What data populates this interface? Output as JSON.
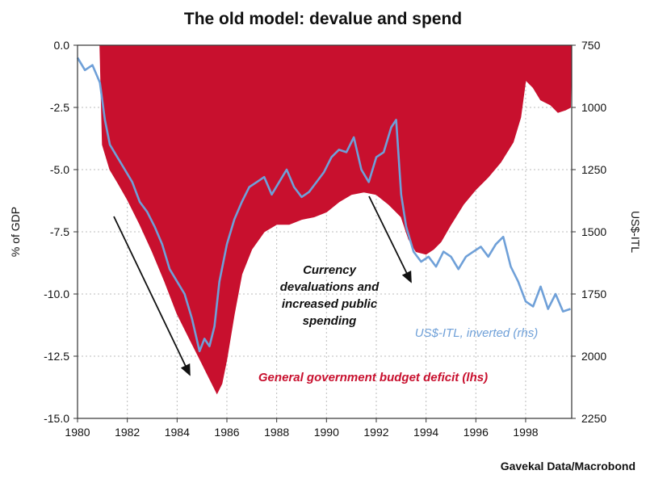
{
  "chart_data": {
    "type": "area",
    "title": "The old model: devalue and spend",
    "ylabel_left": "% of GDP",
    "ylabel_right": "US$-ITL",
    "source": "Gavekal Data/Macrobond",
    "xlim": [
      1980,
      1999.85
    ],
    "ylim_left": [
      -15.0,
      0.0
    ],
    "ylim_right": [
      750,
      2250
    ],
    "right_inverted": true,
    "grid": true,
    "x_ticks": [
      1980,
      1982,
      1984,
      1986,
      1988,
      1990,
      1992,
      1994,
      1996,
      1998
    ],
    "x_tick_labels": [
      "1980",
      "1982",
      "1984",
      "1986",
      "1988",
      "1990",
      "1992",
      "1994",
      "1996",
      "1998"
    ],
    "y_left_ticks": [
      0.0,
      -2.5,
      -5.0,
      -7.5,
      -10.0,
      -12.5,
      -15.0
    ],
    "y_left_tick_labels": [
      "0.0",
      "-2.5",
      "-5.0",
      "-7.5",
      "-10.0",
      "-12.5",
      "-15.0"
    ],
    "y_right_ticks": [
      750,
      1000,
      1250,
      1500,
      1750,
      2000,
      2250
    ],
    "y_right_tick_labels": [
      "750",
      "1000",
      "1250",
      "1500",
      "1750",
      "2000",
      "2250"
    ],
    "series": [
      {
        "name": "General government budget deficit (lhs)",
        "axis": "left",
        "color": "#c8102e",
        "kind": "area",
        "x": [
          1980.9,
          1981.0,
          1981.3,
          1981.6,
          1982.0,
          1982.5,
          1983.0,
          1983.5,
          1984.0,
          1984.5,
          1985.0,
          1985.3,
          1985.6,
          1985.8,
          1986.0,
          1986.3,
          1986.6,
          1987.0,
          1987.5,
          1988.0,
          1988.5,
          1989.0,
          1989.5,
          1990.0,
          1990.5,
          1991.0,
          1991.5,
          1992.0,
          1992.5,
          1993.0,
          1993.3,
          1993.6,
          1994.0,
          1994.3,
          1994.6,
          1995.0,
          1995.5,
          1996.0,
          1996.5,
          1997.0,
          1997.5,
          1997.8,
          1998.0,
          1998.3,
          1998.6,
          1999.0,
          1999.3,
          1999.6,
          1999.8,
          1999.85
        ],
        "values": [
          0.0,
          -4.0,
          -5.0,
          -5.5,
          -6.2,
          -7.2,
          -8.3,
          -9.5,
          -10.8,
          -11.8,
          -12.8,
          -13.4,
          -14.0,
          -13.6,
          -12.6,
          -10.8,
          -9.2,
          -8.2,
          -7.5,
          -7.2,
          -7.2,
          -7.0,
          -6.9,
          -6.7,
          -6.3,
          -6.0,
          -5.9,
          -6.0,
          -6.4,
          -6.9,
          -7.8,
          -8.3,
          -8.4,
          -8.2,
          -7.9,
          -7.2,
          -6.4,
          -5.8,
          -5.3,
          -4.7,
          -3.9,
          -2.9,
          -1.4,
          -1.7,
          -2.2,
          -2.4,
          -2.7,
          -2.6,
          -2.5,
          0.0
        ]
      },
      {
        "name": "US$-ITL, inverted (rhs)",
        "axis": "right",
        "color": "#6fa0d8",
        "kind": "line",
        "x": [
          1980.0,
          1980.3,
          1980.6,
          1980.9,
          1981.1,
          1981.3,
          1981.6,
          1981.9,
          1982.2,
          1982.5,
          1982.8,
          1983.1,
          1983.4,
          1983.7,
          1984.0,
          1984.3,
          1984.6,
          1984.9,
          1985.1,
          1985.3,
          1985.5,
          1985.7,
          1986.0,
          1986.3,
          1986.6,
          1986.9,
          1987.2,
          1987.5,
          1987.8,
          1988.1,
          1988.4,
          1988.7,
          1989.0,
          1989.3,
          1989.6,
          1989.9,
          1990.2,
          1990.5,
          1990.8,
          1991.1,
          1991.4,
          1991.7,
          1992.0,
          1992.3,
          1992.6,
          1992.8,
          1993.0,
          1993.2,
          1993.5,
          1993.8,
          1994.1,
          1994.4,
          1994.7,
          1995.0,
          1995.3,
          1995.6,
          1995.9,
          1996.2,
          1996.5,
          1996.8,
          1997.1,
          1997.4,
          1997.7,
          1998.0,
          1998.3,
          1998.6,
          1998.9,
          1999.2,
          1999.5,
          1999.8
        ],
        "values": [
          800,
          850,
          830,
          900,
          1050,
          1150,
          1200,
          1250,
          1300,
          1380,
          1420,
          1480,
          1550,
          1650,
          1700,
          1750,
          1850,
          1980,
          1930,
          1960,
          1880,
          1700,
          1550,
          1450,
          1380,
          1320,
          1300,
          1280,
          1350,
          1300,
          1250,
          1320,
          1360,
          1340,
          1300,
          1260,
          1200,
          1170,
          1180,
          1120,
          1250,
          1300,
          1200,
          1180,
          1080,
          1050,
          1350,
          1480,
          1580,
          1620,
          1600,
          1640,
          1580,
          1600,
          1650,
          1600,
          1580,
          1560,
          1600,
          1550,
          1520,
          1640,
          1700,
          1780,
          1800,
          1720,
          1810,
          1750,
          1820,
          1810
        ]
      }
    ],
    "annotations": [
      {
        "id": "currency",
        "lines": [
          "Currency",
          "devaluations and",
          "increased public",
          "spending"
        ],
        "style": "black"
      },
      {
        "id": "deficit",
        "lines": [
          "General government budget deficit (lhs)"
        ],
        "style": "red"
      },
      {
        "id": "itl",
        "lines": [
          "US$-ITL, inverted (rhs)"
        ],
        "style": "blue"
      }
    ]
  }
}
